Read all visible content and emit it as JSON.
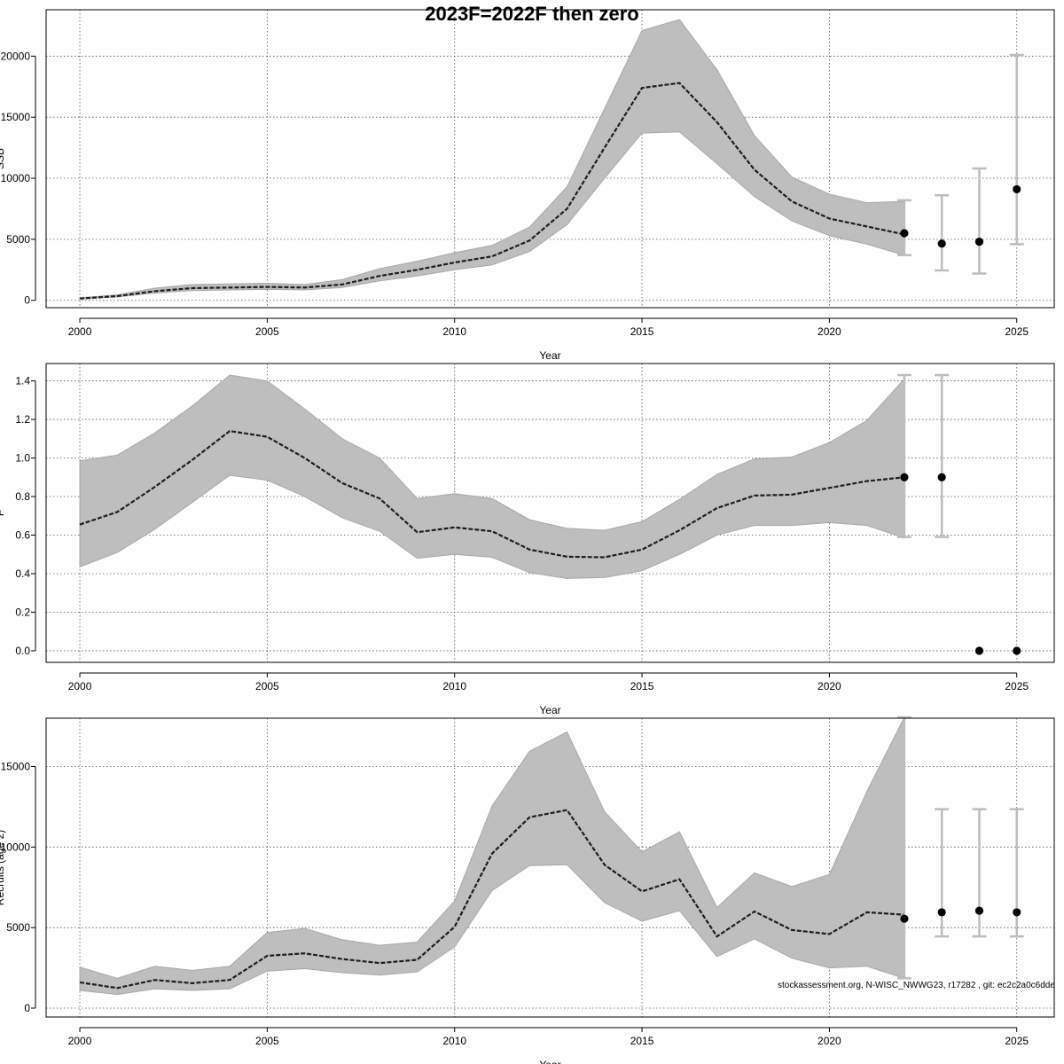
{
  "title": "2023F=2022F then zero",
  "footer": "stockassessment.org, N-WISC_NWWG23, r17282 , git: ec2c2a0c6dde",
  "chart_data": [
    {
      "type": "line",
      "name": "ssb",
      "ylabel": "SSB",
      "xlabel": "Year",
      "xlim": [
        1999.1,
        2026.0
      ],
      "ylim": [
        -600,
        23800
      ],
      "xticks": [
        2000,
        2005,
        2010,
        2015,
        2020,
        2025
      ],
      "yticks": [
        0,
        5000,
        10000,
        15000,
        20000
      ],
      "ytick_labels": [
        "0",
        "5000",
        "10000",
        "15000",
        "20000"
      ],
      "grid": true,
      "series": [
        {
          "name": "estimate",
          "x": [
            2000,
            2001,
            2002,
            2003,
            2004,
            2005,
            2006,
            2007,
            2008,
            2009,
            2010,
            2011,
            2012,
            2013,
            2014,
            2015,
            2016,
            2017,
            2018,
            2019,
            2020,
            2021,
            2022
          ],
          "values": [
            150,
            350,
            750,
            1000,
            1050,
            1100,
            1050,
            1300,
            2000,
            2500,
            3100,
            3600,
            4900,
            7500,
            12500,
            17400,
            17800,
            14600,
            10700,
            8100,
            6700,
            6050,
            5400
          ],
          "lower": [
            100,
            280,
            600,
            800,
            850,
            900,
            850,
            1050,
            1600,
            2000,
            2500,
            2900,
            4000,
            6200,
            10000,
            13700,
            13800,
            11200,
            8500,
            6500,
            5300,
            4600,
            3700
          ],
          "upper": [
            200,
            450,
            1000,
            1300,
            1350,
            1400,
            1300,
            1700,
            2600,
            3200,
            3900,
            4500,
            6000,
            9300,
            15700,
            22100,
            23000,
            18900,
            13500,
            10100,
            8700,
            8000,
            8100
          ]
        }
      ],
      "forecast": {
        "x": [
          2022,
          2023,
          2024,
          2025
        ],
        "values": [
          5500,
          4650,
          4800,
          9100
        ],
        "lower": [
          3700,
          2450,
          2200,
          4600
        ],
        "upper": [
          8200,
          8600,
          10800,
          20100
        ]
      }
    },
    {
      "type": "line",
      "name": "fbar",
      "ylabel": "F",
      "xlabel": "Year",
      "xlim": [
        1999.1,
        2026.0
      ],
      "ylim": [
        -0.06,
        1.49
      ],
      "xticks": [
        2000,
        2005,
        2010,
        2015,
        2020,
        2025
      ],
      "yticks": [
        0.0,
        0.2,
        0.4,
        0.6,
        0.8,
        1.0,
        1.2,
        1.4
      ],
      "ytick_labels": [
        "0.0",
        "0.2",
        "0.4",
        "0.6",
        "0.8",
        "1.0",
        "1.2",
        "1.4"
      ],
      "grid": true,
      "series": [
        {
          "name": "estimate",
          "x": [
            2000,
            2001,
            2002,
            2003,
            2004,
            2005,
            2006,
            2007,
            2008,
            2009,
            2010,
            2011,
            2012,
            2013,
            2014,
            2015,
            2016,
            2017,
            2018,
            2019,
            2020,
            2021,
            2022
          ],
          "values": [
            0.655,
            0.72,
            0.85,
            0.99,
            1.14,
            1.11,
            1.0,
            0.87,
            0.79,
            0.615,
            0.64,
            0.62,
            0.525,
            0.488,
            0.485,
            0.525,
            0.625,
            0.74,
            0.805,
            0.81,
            0.845,
            0.88,
            0.9
          ],
          "lower": [
            0.435,
            0.51,
            0.63,
            0.77,
            0.91,
            0.885,
            0.8,
            0.69,
            0.62,
            0.48,
            0.5,
            0.485,
            0.405,
            0.375,
            0.38,
            0.415,
            0.5,
            0.6,
            0.65,
            0.65,
            0.665,
            0.65,
            0.585
          ],
          "upper": [
            0.985,
            1.015,
            1.13,
            1.27,
            1.43,
            1.4,
            1.255,
            1.1,
            1.0,
            0.79,
            0.815,
            0.79,
            0.68,
            0.635,
            0.625,
            0.67,
            0.785,
            0.915,
            0.995,
            1.005,
            1.08,
            1.195,
            1.41
          ]
        }
      ],
      "forecast": {
        "x": [
          2022,
          2023,
          2024,
          2025
        ],
        "values": [
          0.9,
          0.9,
          0.0,
          0.0
        ],
        "lower": [
          0.59,
          0.59,
          null,
          null
        ],
        "upper": [
          1.43,
          1.43,
          null,
          null
        ]
      }
    },
    {
      "type": "line",
      "name": "recruitment",
      "ylabel": "Recruits (age 2)",
      "xlabel": "Year",
      "xlim": [
        1999.1,
        2026.0
      ],
      "ylim": [
        -550,
        18000
      ],
      "xticks": [
        2000,
        2005,
        2010,
        2015,
        2020,
        2025
      ],
      "yticks": [
        0,
        5000,
        10000,
        15000
      ],
      "ytick_labels": [
        "0",
        "5000",
        "10000",
        "15000"
      ],
      "grid": true,
      "series": [
        {
          "name": "estimate",
          "x": [
            2000,
            2001,
            2002,
            2003,
            2004,
            2005,
            2006,
            2007,
            2008,
            2009,
            2010,
            2011,
            2012,
            2013,
            2014,
            2015,
            2016,
            2017,
            2018,
            2019,
            2020,
            2021,
            2022
          ],
          "values": [
            1600,
            1250,
            1750,
            1550,
            1750,
            3250,
            3400,
            3050,
            2800,
            3000,
            5050,
            9600,
            11850,
            12300,
            8900,
            7250,
            8000,
            4450,
            6000,
            4850,
            4600,
            5950,
            5800
          ],
          "lower": [
            1100,
            850,
            1200,
            1100,
            1200,
            2300,
            2450,
            2200,
            2050,
            2250,
            3800,
            7300,
            8850,
            8900,
            6550,
            5400,
            6050,
            3200,
            4300,
            3100,
            2500,
            2600,
            1850
          ],
          "upper": [
            2550,
            1850,
            2600,
            2350,
            2600,
            4700,
            4950,
            4250,
            3900,
            4100,
            6650,
            12550,
            15950,
            17150,
            12200,
            9700,
            10950,
            6250,
            8400,
            7550,
            8300,
            13450,
            18050
          ]
        }
      ],
      "forecast": {
        "x": [
          2022,
          2023,
          2024,
          2025
        ],
        "values": [
          5550,
          5950,
          6050,
          5950
        ],
        "lower": [
          1850,
          4450,
          4450,
          4450
        ],
        "upper": [
          18050,
          12350,
          12350,
          12350
        ]
      }
    }
  ]
}
